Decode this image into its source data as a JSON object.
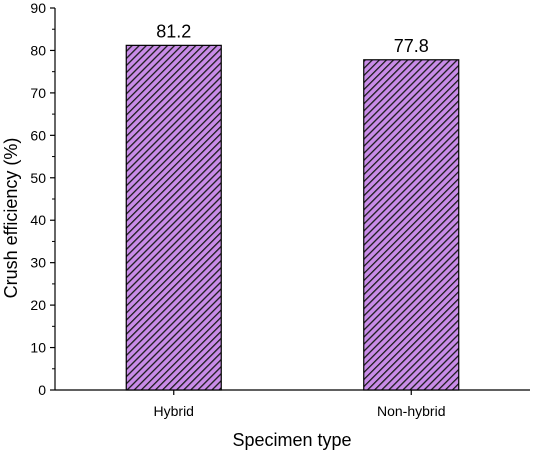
{
  "chart_data": {
    "type": "bar",
    "categories": [
      "Hybrid",
      "Non-hybrid"
    ],
    "values": [
      81.2,
      77.8
    ],
    "data_labels": [
      "81.2",
      "77.8"
    ],
    "title": "",
    "xlabel": "Specimen type",
    "ylabel": "Crush efficiency (%)",
    "ylim": [
      0,
      90
    ],
    "yticks": [
      0,
      10,
      20,
      30,
      40,
      50,
      60,
      70,
      80,
      90
    ],
    "grid": false,
    "legend": "none",
    "bar_fill": "#c98ce8",
    "bar_hatch_color": "#1a1a1a",
    "bar_hatch": "diagonal"
  }
}
